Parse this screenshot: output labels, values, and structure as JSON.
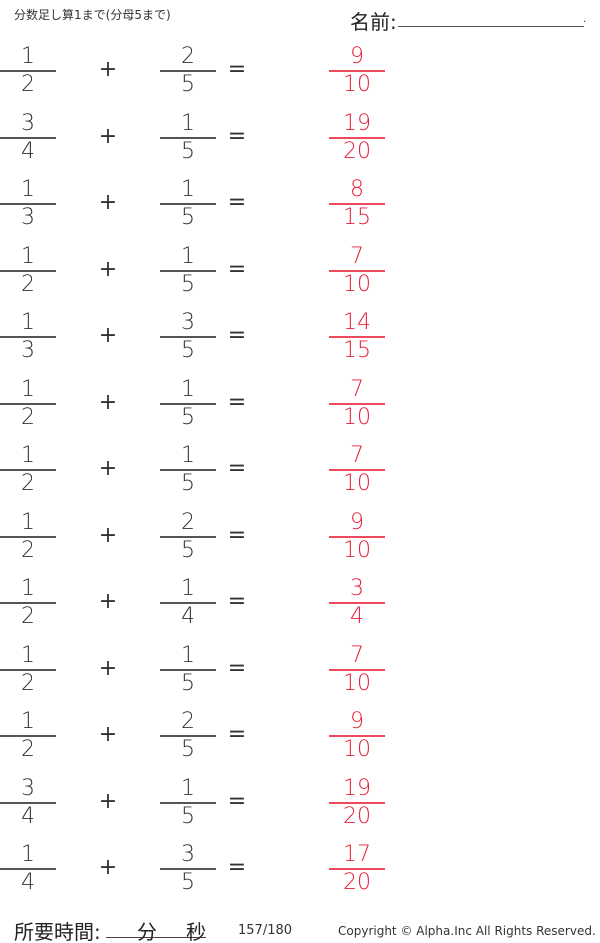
{
  "header": {
    "title": "分数足し算1まで(分母5まで)",
    "name_label": "名前:",
    "name_value": ""
  },
  "problems": [
    {
      "a": [
        "1",
        "2"
      ],
      "op": "+",
      "b": [
        "2",
        "5"
      ],
      "eq": "=",
      "answer": [
        "9",
        "10"
      ]
    },
    {
      "a": [
        "3",
        "4"
      ],
      "op": "+",
      "b": [
        "1",
        "5"
      ],
      "eq": "=",
      "answer": [
        "19",
        "20"
      ]
    },
    {
      "a": [
        "1",
        "3"
      ],
      "op": "+",
      "b": [
        "1",
        "5"
      ],
      "eq": "=",
      "answer": [
        "8",
        "15"
      ]
    },
    {
      "a": [
        "1",
        "2"
      ],
      "op": "+",
      "b": [
        "1",
        "5"
      ],
      "eq": "=",
      "answer": [
        "7",
        "10"
      ]
    },
    {
      "a": [
        "1",
        "3"
      ],
      "op": "+",
      "b": [
        "3",
        "5"
      ],
      "eq": "=",
      "answer": [
        "14",
        "15"
      ]
    },
    {
      "a": [
        "1",
        "2"
      ],
      "op": "+",
      "b": [
        "1",
        "5"
      ],
      "eq": "=",
      "answer": [
        "7",
        "10"
      ]
    },
    {
      "a": [
        "1",
        "2"
      ],
      "op": "+",
      "b": [
        "1",
        "5"
      ],
      "eq": "=",
      "answer": [
        "7",
        "10"
      ]
    },
    {
      "a": [
        "1",
        "2"
      ],
      "op": "+",
      "b": [
        "2",
        "5"
      ],
      "eq": "=",
      "answer": [
        "9",
        "10"
      ]
    },
    {
      "a": [
        "1",
        "2"
      ],
      "op": "+",
      "b": [
        "1",
        "4"
      ],
      "eq": "=",
      "answer": [
        "3",
        "4"
      ]
    },
    {
      "a": [
        "1",
        "2"
      ],
      "op": "+",
      "b": [
        "1",
        "5"
      ],
      "eq": "=",
      "answer": [
        "7",
        "10"
      ]
    },
    {
      "a": [
        "1",
        "2"
      ],
      "op": "+",
      "b": [
        "2",
        "5"
      ],
      "eq": "=",
      "answer": [
        "9",
        "10"
      ]
    },
    {
      "a": [
        "3",
        "4"
      ],
      "op": "+",
      "b": [
        "1",
        "5"
      ],
      "eq": "=",
      "answer": [
        "19",
        "20"
      ]
    },
    {
      "a": [
        "1",
        "4"
      ],
      "op": "+",
      "b": [
        "3",
        "5"
      ],
      "eq": "=",
      "answer": [
        "17",
        "20"
      ]
    }
  ],
  "footer": {
    "time_label": "所要時間:",
    "minutes_label": "分",
    "seconds_label": "秒",
    "page": "157/180",
    "copyright": "Copyright ©  Alpha.Inc All Rights Reserved."
  },
  "colors": {
    "answer": "#e8203a",
    "text": "#333333"
  }
}
